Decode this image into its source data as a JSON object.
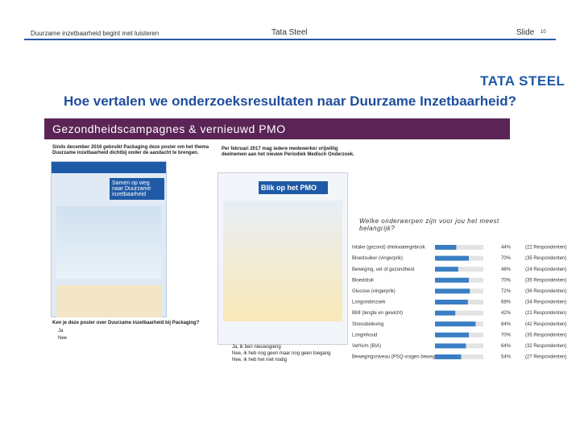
{
  "header": {
    "left": "Duurzame inzetbaarheid begint met luisteren",
    "center": "Tata Steel",
    "right": "Slide",
    "slide_number": "10"
  },
  "logo": "TATA STEEL",
  "title": "Hoe vertalen we onderzoeksresultaten naar Duurzame Inzetbaarheid?",
  "band": "Gezondheidscampagnes & vernieuwd PMO",
  "poster": {
    "caption": "Sinds december 2016 gebruikt Packaging deze poster om het thema Duurzame inzetbaarheid dichtbij onder de aandacht te brengen.",
    "heading": "Samen op weg naar Duurzame inzetbaarheid",
    "question": "Ken je deze poster over Duurzame inzetbaarheid bij Packaging?",
    "options": [
      "Ja",
      "Nee"
    ]
  },
  "pmo": {
    "caption": "Per februari 2017 mag iedere medewerker vrijwillig deelnemen aan het nieuwe Periodiek Medisch Onderzoek.",
    "heading": "Blik op het PMO",
    "options": [
      "Ja, ik ben nieuwsgierig",
      "Nee, ik heb nog geen maar nog geen toegang",
      "Nee, ik heb het niet nodig"
    ]
  },
  "poll": {
    "question": "Welke onderwerpen zijn voor jou het meest belangrijk?",
    "items": [
      {
        "label": "Intake (gezond) drinkwatergebruik",
        "value": 44,
        "value_label": "44%",
        "respondents": "(22 Respondenten)"
      },
      {
        "label": "Bloedsuiker (vingerprik)",
        "value": 70,
        "value_label": "70%",
        "respondents": "(35 Respondenten)"
      },
      {
        "label": "Beweging, vet of gezondheid",
        "value": 48,
        "value_label": "48%",
        "respondents": "(24 Respondenten)"
      },
      {
        "label": "Bloeddruk",
        "value": 70,
        "value_label": "70%",
        "respondents": "(35 Respondenten)"
      },
      {
        "label": "Glucose (vingerprik)",
        "value": 72,
        "value_label": "72%",
        "respondents": "(36 Respondenten)"
      },
      {
        "label": "Longonderzoek",
        "value": 68,
        "value_label": "68%",
        "respondents": "(34 Respondenten)"
      },
      {
        "label": "BMI (lengte en gewicht)",
        "value": 42,
        "value_label": "42%",
        "respondents": "(21 Respondenten)"
      },
      {
        "label": "Stressbeleving",
        "value": 84,
        "value_label": "84%",
        "respondents": "(42 Respondenten)"
      },
      {
        "label": "Longinhoud",
        "value": 70,
        "value_label": "70%",
        "respondents": "(35 Respondenten)"
      },
      {
        "label": "Vet%/m (BIA)",
        "value": 64,
        "value_label": "64%",
        "respondents": "(32 Respondenten)"
      },
      {
        "label": "Bewegingsniveau (PSQ-vragen bewegingsnorm)",
        "value": 54,
        "value_label": "54%",
        "respondents": "(27 Respondenten)"
      }
    ]
  }
}
